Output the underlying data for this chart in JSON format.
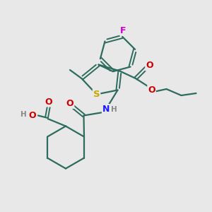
{
  "bg_color": "#e8e8e8",
  "bond_color": "#2d6b5e",
  "atom_colors": {
    "S": "#c8a800",
    "N": "#1a1aff",
    "O": "#cc0000",
    "F": "#cc00cc",
    "H": "#888888",
    "C": "#2d6b5e"
  },
  "figsize": [
    3.0,
    3.0
  ],
  "dpi": 100
}
